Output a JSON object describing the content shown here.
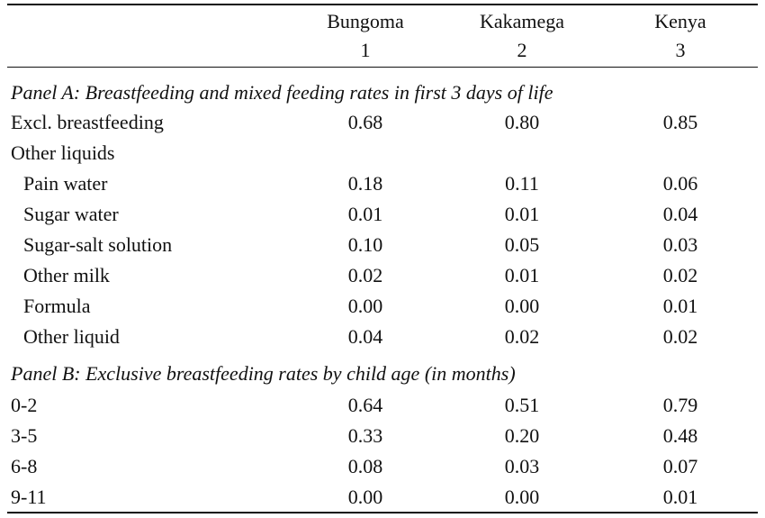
{
  "header": {
    "columns": [
      {
        "name": "Bungoma",
        "number": "1"
      },
      {
        "name": "Kakamega",
        "number": "2"
      },
      {
        "name": "Kenya",
        "number": "3"
      }
    ]
  },
  "panel_a": {
    "title": "Panel A: Breastfeeding and mixed feeding rates in first 3 days of life",
    "rows": [
      {
        "label": "Excl. breastfeeding",
        "values": [
          "0.68",
          "0.80",
          "0.85"
        ]
      },
      {
        "label": "Other liquids",
        "values": [
          "",
          "",
          ""
        ]
      },
      {
        "label": "Pain water",
        "values": [
          "0.18",
          "0.11",
          "0.06"
        ]
      },
      {
        "label": "Sugar water",
        "values": [
          "0.01",
          "0.01",
          "0.04"
        ]
      },
      {
        "label": "Sugar-salt solution",
        "values": [
          "0.10",
          "0.05",
          "0.03"
        ]
      },
      {
        "label": "Other milk",
        "values": [
          "0.02",
          "0.01",
          "0.02"
        ]
      },
      {
        "label": "Formula",
        "values": [
          "0.00",
          "0.00",
          "0.01"
        ]
      },
      {
        "label": "Other liquid",
        "values": [
          "0.04",
          "0.02",
          "0.02"
        ]
      }
    ]
  },
  "panel_b": {
    "title": "Panel B: Exclusive breastfeeding rates by child age (in months)",
    "rows": [
      {
        "label": "0-2",
        "values": [
          "0.64",
          "0.51",
          "0.79"
        ]
      },
      {
        "label": "3-5",
        "values": [
          "0.33",
          "0.20",
          "0.48"
        ]
      },
      {
        "label": "6-8",
        "values": [
          "0.08",
          "0.03",
          "0.07"
        ]
      },
      {
        "label": "9-11",
        "values": [
          "0.00",
          "0.00",
          "0.01"
        ]
      }
    ]
  }
}
